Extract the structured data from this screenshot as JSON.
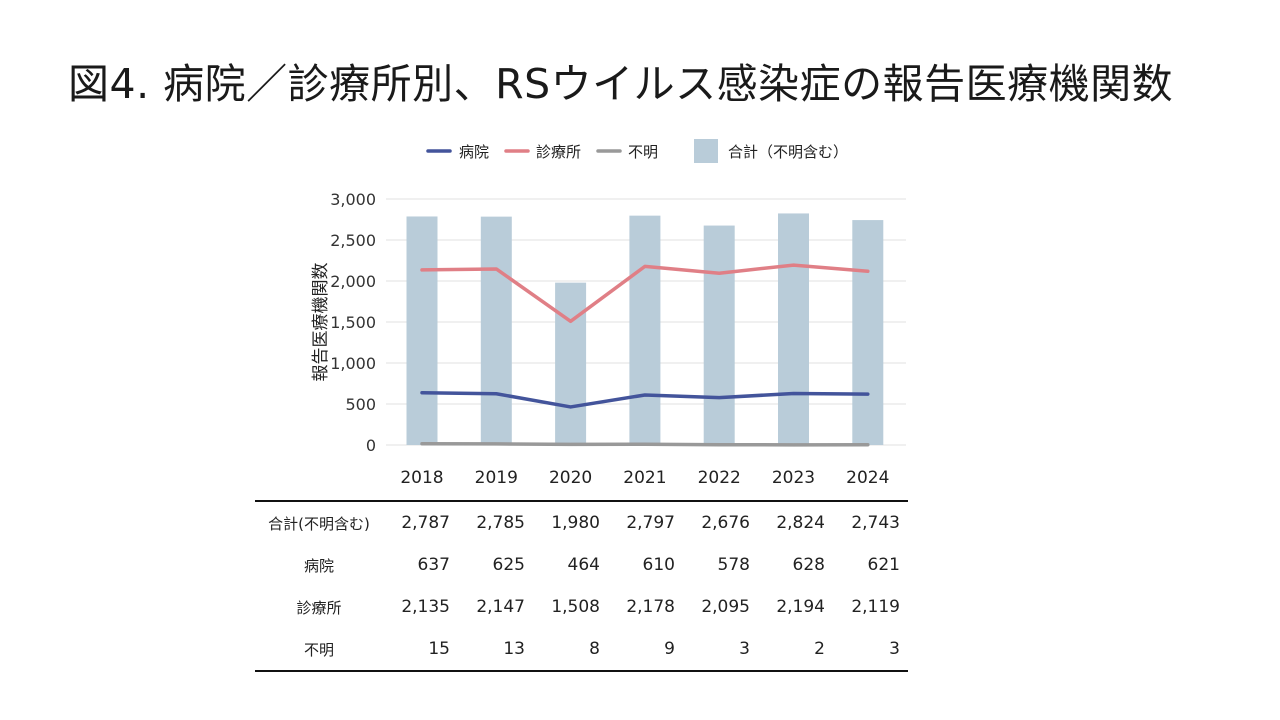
{
  "title": "図4. 病院／診療所別、RSウイルス感染症の報告医療機関数",
  "colors": {
    "hospital": "#43549B",
    "clinic": "#E07F86",
    "unknown": "#999999",
    "total_bar": "#B9CCD9",
    "grid": "#E0E0E0"
  },
  "chart_data": {
    "type": "bar",
    "categories": [
      "2018",
      "2019",
      "2020",
      "2021",
      "2022",
      "2023",
      "2024"
    ],
    "ylabel": "報告医療機関数",
    "ylim": [
      0,
      3000
    ],
    "yticks": [
      "0",
      "500",
      "1,000",
      "1,500",
      "2,000",
      "2,500",
      "3,000"
    ],
    "ytick_values": [
      0,
      500,
      1000,
      1500,
      2000,
      2500,
      3000
    ],
    "grid": true,
    "legend_position": "top",
    "legend": [
      "病院",
      "診療所",
      "不明",
      "合計（不明含む）"
    ],
    "series": [
      {
        "name": "合計（不明含む）",
        "kind": "bar",
        "color_key": "total_bar",
        "values": [
          2787,
          2785,
          1980,
          2797,
          2676,
          2824,
          2743
        ]
      },
      {
        "name": "病院",
        "kind": "line",
        "color_key": "hospital",
        "values": [
          637,
          625,
          464,
          610,
          578,
          628,
          621
        ]
      },
      {
        "name": "診療所",
        "kind": "line",
        "color_key": "clinic",
        "values": [
          2135,
          2147,
          1508,
          2178,
          2095,
          2194,
          2119
        ]
      },
      {
        "name": "不明",
        "kind": "line",
        "color_key": "unknown",
        "values": [
          15,
          13,
          8,
          9,
          3,
          2,
          3
        ]
      }
    ]
  },
  "table": {
    "rows": [
      {
        "label": "合計(不明含む)",
        "values": [
          "2,787",
          "2,785",
          "1,980",
          "2,797",
          "2,676",
          "2,824",
          "2,743"
        ]
      },
      {
        "label": "病院",
        "values": [
          "637",
          "625",
          "464",
          "610",
          "578",
          "628",
          "621"
        ]
      },
      {
        "label": "診療所",
        "values": [
          "2,135",
          "2,147",
          "1,508",
          "2,178",
          "2,095",
          "2,194",
          "2,119"
        ]
      },
      {
        "label": "不明",
        "values": [
          "15",
          "13",
          "8",
          "9",
          "3",
          "2",
          "3"
        ]
      }
    ]
  }
}
